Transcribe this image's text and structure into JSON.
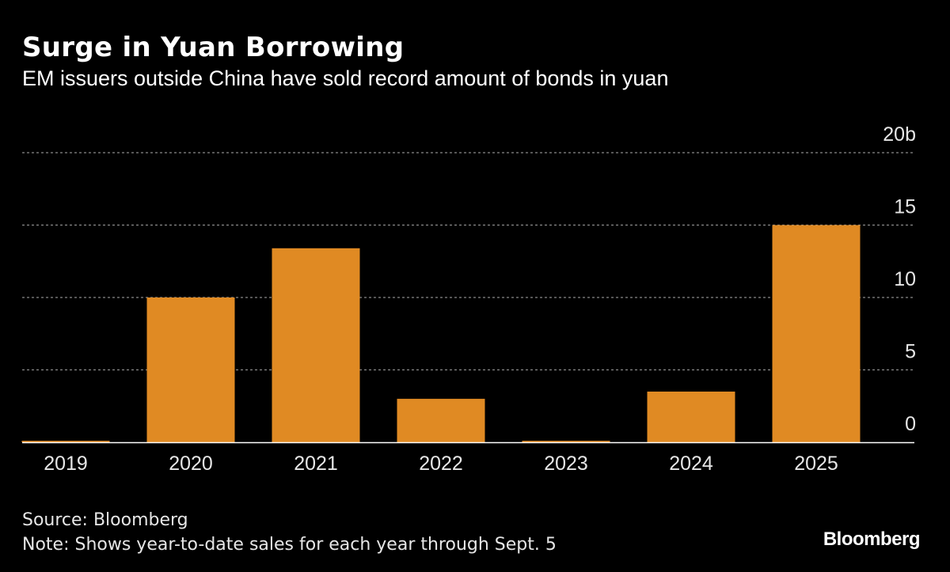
{
  "chart_data": {
    "type": "bar",
    "title": "Surge in Yuan Borrowing",
    "subtitle": "EM issuers outside China have sold record amount of bonds in yuan",
    "categories": [
      "2019",
      "2020",
      "2021",
      "2022",
      "2023",
      "2024",
      "2025"
    ],
    "values": [
      0.1,
      10,
      13.4,
      3,
      0.1,
      3.5,
      15
    ],
    "y_ticks": [
      0,
      5,
      10,
      15,
      20
    ],
    "y_tick_labels": [
      "0",
      "5",
      "10",
      "15",
      "20b"
    ],
    "ylim": [
      0,
      20
    ],
    "xlabel": "",
    "ylabel": "",
    "grid": true,
    "legend": "none",
    "bar_color": "#e08a23",
    "background": "#000000"
  },
  "footer": {
    "source": "Source: Bloomberg",
    "note": "Note: Shows year-to-date sales for each year through Sept. 5",
    "logo": "Bloomberg"
  }
}
